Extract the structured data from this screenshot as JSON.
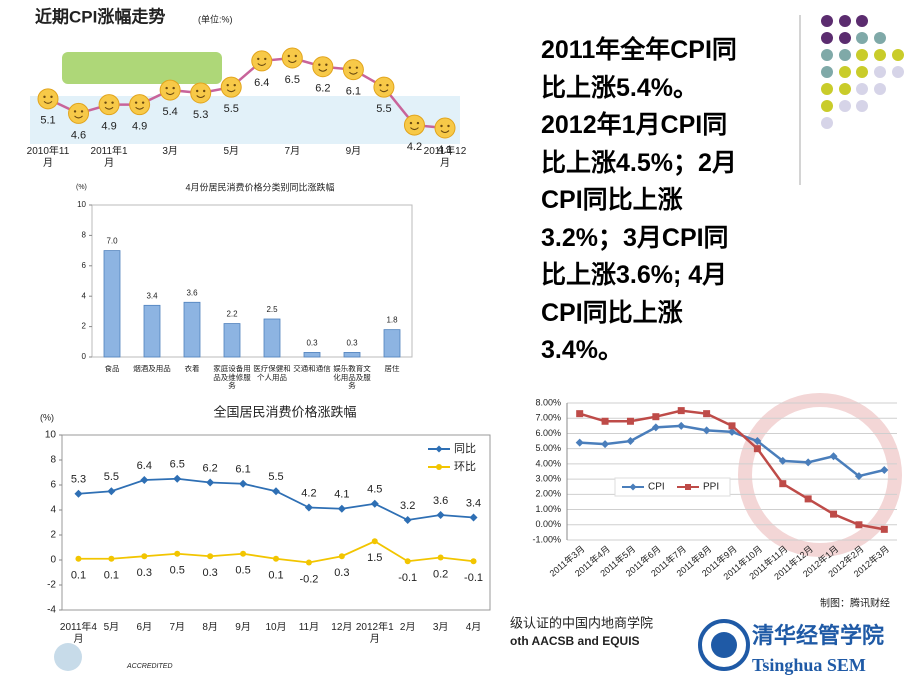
{
  "chart_data": [
    {
      "type": "line",
      "title": "近期CPI涨幅走势",
      "subtitle": "(单位:%)",
      "categories": [
        "2010年11月",
        null,
        "2011年1月",
        null,
        "3月",
        null,
        "5月",
        null,
        "7月",
        null,
        "9月",
        null,
        null,
        "2011年12月"
      ],
      "values": [
        5.1,
        4.6,
        4.9,
        4.9,
        5.4,
        5.3,
        5.5,
        6.4,
        6.5,
        6.2,
        6.1,
        5.5,
        4.2,
        4.1
      ],
      "color": "#c8649a",
      "marker_color": "#f7c948"
    },
    {
      "type": "bar",
      "title": "4月份居民消费价格分类别同比涨跌幅",
      "y_label": "(%)",
      "categories": [
        "食品",
        "烟酒及用品",
        "衣着",
        "家庭设备用品及维修服务",
        "医疗保健和个人用品",
        "交通和通信",
        "娱乐教育文化用品及服务",
        "居住"
      ],
      "values": [
        7.0,
        3.4,
        3.6,
        2.2,
        2.5,
        0.3,
        0.3,
        1.8
      ],
      "value_labels": [
        "7.0",
        "3.4",
        "3.6",
        "2.2",
        "2.5",
        "0.3",
        "0.3",
        "1.8"
      ],
      "color": "#8db4e2",
      "ylim": [
        0,
        10
      ],
      "yticks": [
        0,
        2,
        4,
        6,
        8,
        10
      ]
    },
    {
      "type": "line",
      "title": "全国居民消费价格涨跌幅",
      "y_label": "(%)",
      "categories": [
        "2011年4月",
        "5月",
        "6月",
        "7月",
        "8月",
        "9月",
        "10月",
        "11月",
        "12月",
        "2012年1月",
        "2月",
        "3月",
        "4月"
      ],
      "series": [
        {
          "name": "同比",
          "color": "#2e6fb4",
          "values": [
            5.3,
            5.5,
            6.4,
            6.5,
            6.2,
            6.1,
            5.5,
            4.2,
            4.1,
            4.5,
            3.2,
            3.6,
            3.4
          ]
        },
        {
          "name": "环比",
          "color": "#f2c500",
          "values": [
            0.1,
            0.1,
            0.3,
            0.5,
            0.3,
            0.5,
            0.1,
            -0.2,
            0.3,
            1.5,
            -0.1,
            0.2,
            -0.1
          ]
        }
      ],
      "ylim": [
        -4,
        10
      ],
      "yticks": [
        -4,
        -2,
        0,
        2,
        4,
        6,
        8,
        10
      ],
      "legend": "upper right"
    },
    {
      "type": "line",
      "note": "制图：腾讯财经",
      "categories": [
        "2011年3月",
        "2011年4月",
        "2011年5月",
        "2011年6月",
        "2011年7月",
        "2011年8月",
        "2011年9月",
        "2011年10月",
        "2011年11月",
        "2011年12月",
        "2012年1月",
        "2012年2月",
        "2012年3月"
      ],
      "series": [
        {
          "name": "CPI",
          "color": "#4a7ebb",
          "values": [
            5.4,
            5.3,
            5.5,
            6.4,
            6.5,
            6.2,
            6.1,
            5.5,
            4.2,
            4.1,
            4.5,
            3.2,
            3.6
          ]
        },
        {
          "name": "PPI",
          "color": "#be4b48",
          "values": [
            7.3,
            6.8,
            6.8,
            7.1,
            7.5,
            7.3,
            6.5,
            5.0,
            2.7,
            1.7,
            0.7,
            0.0,
            -0.3
          ]
        }
      ],
      "ylim": [
        -1,
        8
      ],
      "yticks": [
        {
          "value": -1,
          "label": "-1.00%"
        },
        {
          "value": 0,
          "label": "0.00%"
        },
        {
          "value": 1,
          "label": "1.00%"
        },
        {
          "value": 2,
          "label": "2.00%"
        },
        {
          "value": 3,
          "label": "3.00%"
        },
        {
          "value": 4,
          "label": "4.00%"
        },
        {
          "value": 5,
          "label": "5.00%"
        },
        {
          "value": 6,
          "label": "6.00%"
        },
        {
          "value": 7,
          "label": "7.00%"
        },
        {
          "value": 8,
          "label": "8.00%"
        }
      ],
      "grid": true,
      "legend": "center left"
    }
  ],
  "summary": [
    "2011年全年CPI同",
    "比上涨5.4%。",
    "2012年1月CPI同",
    "比上涨4.5%；2月",
    "CPI同比上涨",
    "3.2%；3月CPI同",
    "比上涨3.6%; 4月",
    "CPI同比上涨",
    "3.4%。"
  ],
  "footer": {
    "cn_text": "级认证的中国内地商学院",
    "en_text": "oth AACSB and EQUIS",
    "accredited": "ACCREDITED",
    "logo_cn": "清华经管学院",
    "logo_en": "Tsinghua SEM"
  }
}
